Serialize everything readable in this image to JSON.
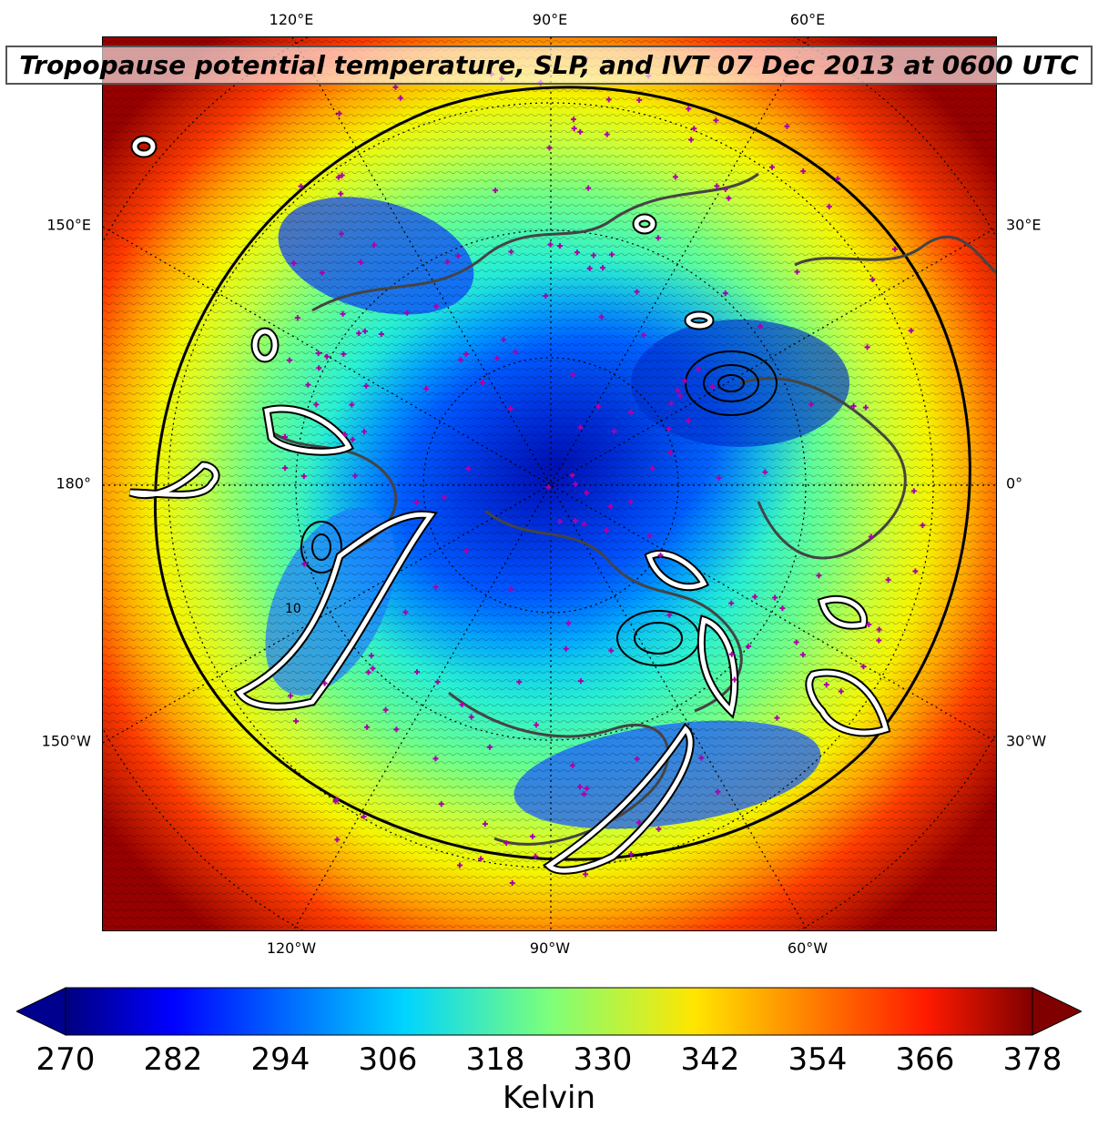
{
  "title": "Tropopause potential temperature, SLP, and IVT 07 Dec 2013 at 0600 UTC",
  "map": {
    "projection": "north-polar-stereographic",
    "field": "tropopause potential temperature",
    "overlays": [
      "SLP contours",
      "IVT contours",
      "coastlines",
      "station markers"
    ],
    "colors": {
      "coast": "#444444",
      "station_marker": "#aa00aa",
      "ivt_contour": "#ffffff",
      "ivt_contour_edge": "#000000",
      "gridline": "#000000"
    },
    "lon_labels_top": [
      "120°E",
      "90°E",
      "60°E"
    ],
    "lon_labels_bottom": [
      "120°W",
      "90°W",
      "60°W"
    ],
    "lon_labels_left": [
      "150°E",
      "180°",
      "150°W"
    ],
    "lon_labels_right": [
      "30°E",
      "0°",
      "30°W"
    ],
    "contour_label": "10"
  },
  "colorbar": {
    "label": "Kelvin",
    "min": 270,
    "max": 378,
    "extend": "both",
    "ticks": [
      "270",
      "282",
      "294",
      "306",
      "318",
      "330",
      "342",
      "354",
      "366",
      "378"
    ],
    "colormap": "jet"
  }
}
